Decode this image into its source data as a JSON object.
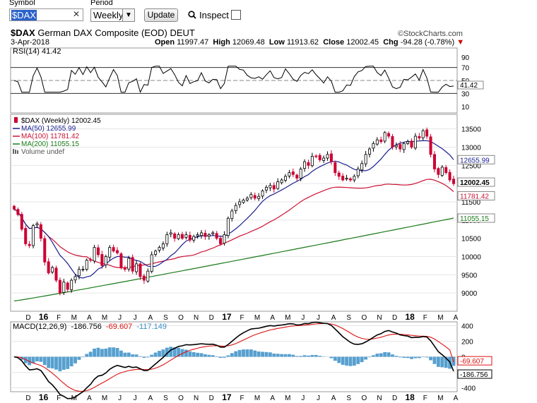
{
  "toolbar": {
    "symbol_label": "Symbol",
    "symbol_value": "$DAX",
    "period_label": "Period",
    "period_value": "Weekly",
    "update_label": "Update",
    "inspect_label": "Inspect"
  },
  "header": {
    "ticker": "$DAX",
    "name": "German DAX Composite (EOD)",
    "exchange": "DEUT",
    "date": "3-Apr-2018",
    "copyright": "©StockCharts.com",
    "open_label": "Open",
    "open_value": "11997.47",
    "high_label": "High",
    "high_value": "12069.48",
    "low_label": "Low",
    "low_value": "11913.62",
    "close_label": "Close",
    "close_value": "12002.45",
    "chg_label": "Chg",
    "chg_value": "-94.28 (-0.78%)",
    "chg_arrow": "▼"
  },
  "rsi_panel": {
    "label": "RSI(14) 41.42",
    "current": "41.42",
    "ticks": [
      "90",
      "70",
      "50",
      "30",
      "10"
    ]
  },
  "price_panel": {
    "legend": [
      {
        "text": "$DAX (Weekly) 12002.45",
        "color": "#000000",
        "marker": "candle"
      },
      {
        "text": "MA(50) 12655.99",
        "color": "#1a1f8f",
        "marker": "line"
      },
      {
        "text": "MA(100) 11781.42",
        "color": "#cc1133",
        "marker": "line"
      },
      {
        "text": "MA(200) 11055.15",
        "color": "#1a7a1a",
        "marker": "line"
      },
      {
        "text": "Volume undef",
        "color": "#555555",
        "marker": "bars"
      }
    ],
    "ticks": [
      "13500",
      "13000",
      "12500",
      "12000",
      "11500",
      "11000",
      "10500",
      "10000",
      "9500",
      "9000"
    ],
    "value_labels": [
      "12655.99",
      "12002.45",
      "11781.42",
      "11055.15"
    ]
  },
  "macd_panel": {
    "label_prefix": "MACD(12,26,9)",
    "macd": "-186.756",
    "signal": "-69.607",
    "hist": "-117.149",
    "ticks": [
      "400",
      "200",
      "0",
      "-200",
      "-400"
    ],
    "value_labels": [
      "-69.607",
      "-186.756"
    ]
  },
  "x_axis": {
    "labels": [
      "D",
      "16",
      "F",
      "M",
      "A",
      "M",
      "J",
      "J",
      "A",
      "S",
      "O",
      "N",
      "D",
      "17",
      "F",
      "M",
      "A",
      "M",
      "J",
      "J",
      "A",
      "S",
      "O",
      "N",
      "D",
      "18",
      "F",
      "M",
      "A"
    ]
  },
  "chart_data": {
    "type": "candlestick",
    "title": "$DAX German DAX Composite (EOD) DEUT",
    "period": "Weekly",
    "ylim": [
      8500,
      13900
    ],
    "weeks_x": [
      "2015-12",
      "2016-01",
      "2016-02",
      "2016-03",
      "2016-04",
      "2016-05",
      "2016-06",
      "2016-07",
      "2016-08",
      "2016-09",
      "2016-10",
      "2016-11",
      "2016-12",
      "2017-01",
      "2017-02",
      "2017-03",
      "2017-04",
      "2017-05",
      "2017-06",
      "2017-07",
      "2017-08",
      "2017-09",
      "2017-10",
      "2017-11",
      "2017-12",
      "2018-01",
      "2018-02",
      "2018-03",
      "2018-04"
    ],
    "close_series": [
      11300,
      11150,
      10750,
      10350,
      10300,
      10850,
      10900,
      10500,
      9850,
      9550,
      9700,
      9350,
      9000,
      9300,
      9100,
      9350,
      9450,
      9650,
      9650,
      9900,
      9900,
      10250,
      10050,
      9750,
      10000,
      10250,
      10150,
      10100,
      9700,
      9650,
      9950,
      9600,
      9800,
      9450,
      9350,
      9600,
      10050,
      10150,
      10250,
      10350,
      10600,
      10650,
      10500,
      10600,
      10500,
      10600,
      10450,
      10550,
      10600,
      10650,
      10550,
      10600,
      10650,
      10500,
      10350,
      10600,
      11050,
      11250,
      11400,
      11500,
      11550,
      11600,
      11700,
      11600,
      11650,
      11800,
      11900,
      11950,
      11850,
      12050,
      12100,
      12200,
      12300,
      12250,
      12150,
      12400,
      12600,
      12500,
      12750,
      12750,
      12650,
      12700,
      12800,
      12600,
      12300,
      12200,
      12100,
      12150,
      12100,
      12200,
      12400,
      12550,
      12800,
      12950,
      13100,
      13200,
      13150,
      13400,
      13300,
      13000,
      13050,
      12950,
      13100,
      13150,
      13000,
      13300,
      13250,
      13450,
      13300,
      12800,
      12400,
      12250,
      12450,
      12300,
      12100,
      12000
    ],
    "ma50": {
      "name": "MA(50)",
      "last": 12655.99
    },
    "ma100": {
      "name": "MA(100)",
      "last": 11781.42
    },
    "ma200": {
      "name": "MA(200)",
      "last": 11055.15
    },
    "rsi": {
      "name": "RSI(14)",
      "last": 41.42,
      "ylim": [
        0,
        100
      ],
      "levels": [
        70,
        50,
        30
      ]
    },
    "macd": {
      "name": "MACD(12,26,9)",
      "macd": -186.756,
      "signal": -69.607,
      "histogram": -117.149,
      "ylim": [
        -450,
        450
      ]
    }
  }
}
